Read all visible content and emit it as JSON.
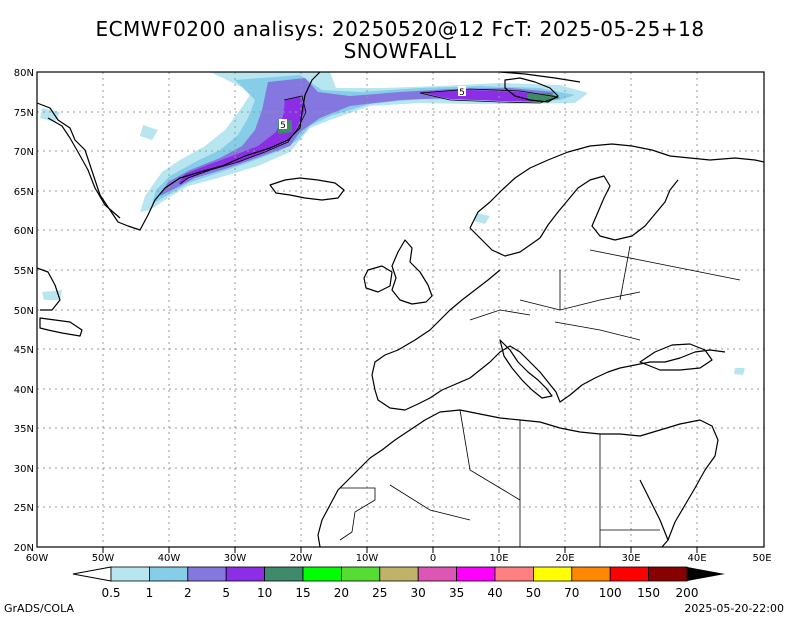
{
  "title_line1": "ECMWF0200 analisys: 20250520@12 FcT: 2025-05-25+18",
  "title_line2": "SNOWFALL",
  "map": {
    "lon_range": [
      -60,
      50
    ],
    "lat_range": [
      20,
      80
    ],
    "grid": "dotted",
    "lon_labels": [
      "60W",
      "50W",
      "40W",
      "30W",
      "20W",
      "10W",
      "0",
      "10E",
      "20E",
      "30E",
      "40E",
      "50E"
    ],
    "lat_labels": [
      "20N",
      "25N",
      "30N",
      "35N",
      "40N",
      "45N",
      "50N",
      "55N",
      "60N",
      "65N",
      "70N",
      "75N",
      "80N"
    ],
    "contour_labels": [
      "5",
      "5"
    ]
  },
  "legend": {
    "values": [
      "0.5",
      "1",
      "2",
      "5",
      "10",
      "15",
      "20",
      "25",
      "30",
      "35",
      "40",
      "50",
      "70",
      "100",
      "150",
      "200"
    ],
    "colors": [
      "#b8e6f0",
      "#86cde8",
      "#8577e0",
      "#8c2ee6",
      "#3f8a6a",
      "#00ff00",
      "#55dd33",
      "#bfb36a",
      "#dd55b5",
      "#ff00ff",
      "#ff8080",
      "#ffff00",
      "#ff8800",
      "#ff0000",
      "#880000"
    ]
  },
  "footer_left": "GrADS/COLA",
  "footer_right": "2025-05-20-22:00"
}
